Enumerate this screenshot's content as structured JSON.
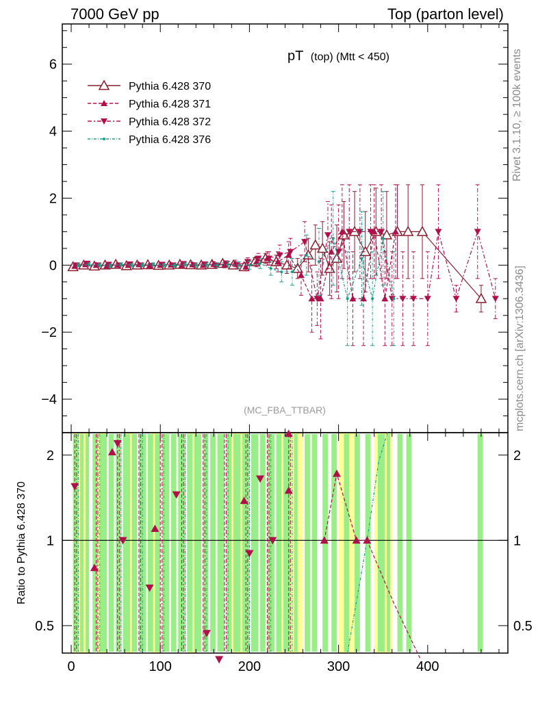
{
  "header": {
    "left": "7000 GeV pp",
    "right": "Top (parton level)"
  },
  "chart_data": {
    "type": "line",
    "title_main": "pT",
    "title_sub": "(top) (Mtt < 450)",
    "analysis_label": "(MC_FBA_TTBAR)",
    "side_label_top": "Rivet 3.1.10, ≥ 100k events",
    "side_label_bottom": "mcplots.cern.ch [arXiv:1306.3436]",
    "xlim": [
      -10,
      490
    ],
    "ylim": [
      -5.0,
      7.2
    ],
    "xticks": [
      0,
      100,
      200,
      300,
      400
    ],
    "yticks": [
      -4,
      -2,
      0,
      2,
      4,
      6
    ],
    "ratio_ylabel": "Ratio to Pythia 6.428 370",
    "ratio_ylim": [
      0.4,
      2.4
    ],
    "ratio_yticks": [
      0.5,
      1,
      2
    ],
    "ratio_ytick_labels": [
      "0.5",
      "1",
      "2"
    ],
    "series": [
      {
        "name": "Pythia 6.428 370",
        "color": "#8b1a2b",
        "marker": "triangle-open",
        "dash": "none",
        "x": [
          2,
          14,
          26,
          38,
          50,
          62,
          74,
          86,
          98,
          110,
          122,
          134,
          146,
          158,
          170,
          182,
          194,
          206,
          218,
          230,
          242,
          254,
          266,
          274,
          282,
          290,
          298,
          306,
          318,
          330,
          342,
          354,
          366,
          378,
          394,
          460
        ],
        "y": [
          -0.05,
          0.0,
          -0.03,
          0.0,
          0.02,
          -0.02,
          0.0,
          0.01,
          -0.01,
          0.0,
          0.02,
          0.01,
          0.0,
          0.02,
          0.05,
          0.0,
          -0.05,
          0.1,
          0.2,
          0.1,
          0.0,
          -0.1,
          0.3,
          0.6,
          0.5,
          -0.1,
          0.2,
          0.9,
          1.0,
          0.4,
          1.0,
          0.9,
          1.0,
          1.0,
          1.0,
          -1.0
        ],
        "err": [
          0.05,
          0.05,
          0.05,
          0.05,
          0.05,
          0.05,
          0.05,
          0.05,
          0.05,
          0.05,
          0.05,
          0.05,
          0.06,
          0.06,
          0.07,
          0.08,
          0.1,
          0.12,
          0.15,
          0.2,
          0.25,
          0.3,
          0.5,
          0.6,
          0.8,
          0.8,
          1.0,
          1.0,
          1.2,
          1.2,
          1.3,
          1.3,
          1.4,
          1.4,
          1.4,
          0.4
        ]
      },
      {
        "name": "Pythia 6.428 371",
        "color": "#b0104a",
        "marker": "triangle-up",
        "dash": "5,3",
        "x": [
          4,
          16,
          28,
          40,
          52,
          64,
          76,
          88,
          100,
          112,
          124,
          136,
          148,
          160,
          172,
          184,
          196,
          208,
          220,
          232,
          244,
          258,
          270,
          280,
          292,
          304,
          316,
          328,
          340,
          352,
          364
        ],
        "y": [
          -0.03,
          0.02,
          0.0,
          -0.02,
          0.01,
          0.0,
          0.02,
          -0.01,
          0.0,
          0.01,
          0.0,
          0.02,
          0.0,
          0.03,
          0.0,
          0.05,
          -0.05,
          0.1,
          0.2,
          0.1,
          0.3,
          -0.3,
          -1.0,
          -1.0,
          0.4,
          1.0,
          -1.0,
          -1.0,
          1.0,
          -1.0,
          1.0
        ],
        "err": [
          0.05,
          0.05,
          0.05,
          0.05,
          0.05,
          0.05,
          0.05,
          0.05,
          0.05,
          0.05,
          0.05,
          0.06,
          0.06,
          0.07,
          0.08,
          0.1,
          0.12,
          0.15,
          0.2,
          0.3,
          0.4,
          0.6,
          1.0,
          1.2,
          1.4,
          1.4,
          1.4,
          1.4,
          1.4,
          1.4,
          1.4
        ]
      },
      {
        "name": "Pythia 6.428 372",
        "color": "#b0104a",
        "marker": "triangle-down",
        "dash": "6,3,2,3",
        "x": [
          6,
          18,
          30,
          42,
          54,
          66,
          78,
          90,
          102,
          114,
          126,
          138,
          150,
          162,
          174,
          186,
          198,
          210,
          222,
          234,
          246,
          262,
          276,
          288,
          300,
          312,
          324,
          336,
          348,
          360,
          372,
          384,
          400,
          412,
          432,
          456,
          476
        ],
        "y": [
          0.0,
          0.05,
          0.0,
          0.02,
          0.0,
          0.03,
          0.0,
          -0.02,
          0.02,
          0.0,
          0.04,
          0.0,
          0.03,
          0.0,
          0.05,
          0.0,
          0.1,
          0.2,
          0.2,
          0.3,
          0.4,
          0.7,
          -1.0,
          0.9,
          0.4,
          1.0,
          1.0,
          1.0,
          1.0,
          -1.0,
          -1.0,
          -1.0,
          -1.0,
          1.0,
          -1.0,
          1.0,
          -1.0
        ],
        "err": [
          0.05,
          0.05,
          0.05,
          0.05,
          0.05,
          0.05,
          0.05,
          0.05,
          0.05,
          0.05,
          0.05,
          0.06,
          0.06,
          0.07,
          0.08,
          0.1,
          0.12,
          0.15,
          0.2,
          0.3,
          0.4,
          0.6,
          0.8,
          1.0,
          1.4,
          1.4,
          1.4,
          1.4,
          1.4,
          1.4,
          1.4,
          1.4,
          1.4,
          1.4,
          0.4,
          1.4,
          0.6
        ]
      },
      {
        "name": "Pythia 6.428 376",
        "color": "#1a9e8a",
        "marker": "dot",
        "dash": "4,2,1,2",
        "x": [
          8,
          20,
          32,
          44,
          56,
          68,
          80,
          92,
          104,
          116,
          128,
          140,
          152,
          164,
          176,
          188,
          200,
          212,
          224,
          236,
          248,
          264,
          278,
          294,
          310,
          326,
          338,
          350,
          362
        ],
        "y": [
          0.0,
          0.02,
          0.0,
          -0.02,
          0.02,
          0.0,
          0.0,
          0.02,
          0.0,
          -0.01,
          0.02,
          0.0,
          0.01,
          0.0,
          0.02,
          0.0,
          0.0,
          0.05,
          -0.1,
          -0.2,
          -0.2,
          0.3,
          0.1,
          0.8,
          -1.0,
          0.2,
          -1.0,
          0.8,
          -1.0
        ],
        "err": [
          0.05,
          0.05,
          0.05,
          0.05,
          0.05,
          0.05,
          0.05,
          0.05,
          0.05,
          0.05,
          0.05,
          0.06,
          0.06,
          0.07,
          0.08,
          0.1,
          0.12,
          0.15,
          0.2,
          0.3,
          0.4,
          0.6,
          1.0,
          1.4,
          1.4,
          1.4,
          1.4,
          1.4,
          1.4
        ]
      }
    ],
    "ratio_band": {
      "green": [
        [
          2,
          8
        ],
        [
          10,
          14
        ],
        [
          16,
          20
        ],
        [
          24,
          30
        ],
        [
          32,
          40
        ],
        [
          42,
          48
        ],
        [
          50,
          56
        ],
        [
          58,
          66
        ],
        [
          68,
          74
        ],
        [
          76,
          84
        ],
        [
          86,
          92
        ],
        [
          94,
          100
        ],
        [
          102,
          110
        ],
        [
          112,
          118
        ],
        [
          120,
          128
        ],
        [
          130,
          136
        ],
        [
          138,
          146
        ],
        [
          148,
          154
        ],
        [
          156,
          162
        ],
        [
          164,
          172
        ],
        [
          174,
          180
        ],
        [
          182,
          190
        ],
        [
          192,
          200
        ],
        [
          202,
          210
        ],
        [
          212,
          218
        ],
        [
          220,
          228
        ],
        [
          230,
          236
        ],
        [
          238,
          246
        ],
        [
          250,
          254
        ],
        [
          262,
          268
        ],
        [
          270,
          276
        ],
        [
          282,
          288
        ],
        [
          292,
          298
        ],
        [
          306,
          312
        ],
        [
          318,
          324
        ],
        [
          330,
          336
        ],
        [
          344,
          352
        ],
        [
          354,
          358
        ],
        [
          366,
          372
        ],
        [
          376,
          382
        ],
        [
          456,
          462
        ]
      ],
      "yellow": [
        [
          2,
          20
        ],
        [
          30,
          40
        ],
        [
          60,
          70
        ],
        [
          90,
          100
        ],
        [
          130,
          140
        ],
        [
          180,
          200
        ],
        [
          230,
          260
        ],
        [
          300,
          320
        ],
        [
          340,
          360
        ]
      ]
    },
    "ratio_points": [
      {
        "s": 2,
        "x": 4,
        "y": 1.55
      },
      {
        "s": 1,
        "x": 26,
        "y": 0.8
      },
      {
        "s": 1,
        "x": 46,
        "y": 2.05
      },
      {
        "s": 2,
        "x": 52,
        "y": 2.2
      },
      {
        "s": 2,
        "x": 58,
        "y": 1.0
      },
      {
        "s": 2,
        "x": 88,
        "y": 0.68
      },
      {
        "s": 1,
        "x": 94,
        "y": 1.1
      },
      {
        "s": 2,
        "x": 118,
        "y": 1.45
      },
      {
        "s": 2,
        "x": 152,
        "y": 0.47
      },
      {
        "s": 2,
        "x": 166,
        "y": 0.38
      },
      {
        "s": 1,
        "x": 194,
        "y": 1.38
      },
      {
        "s": 2,
        "x": 200,
        "y": 0.9
      },
      {
        "s": 2,
        "x": 212,
        "y": 1.65
      },
      {
        "s": 2,
        "x": 226,
        "y": 1.0
      },
      {
        "s": 1,
        "x": 244,
        "y": 1.5
      },
      {
        "s": 1,
        "x": 244,
        "y": 2.4
      },
      {
        "s": 1,
        "x": 284,
        "y": 1.0
      },
      {
        "s": 1,
        "x": 298,
        "y": 1.72
      },
      {
        "s": 1,
        "x": 320,
        "y": 1.0
      },
      {
        "s": 1,
        "x": 332,
        "y": 1.0
      }
    ]
  }
}
